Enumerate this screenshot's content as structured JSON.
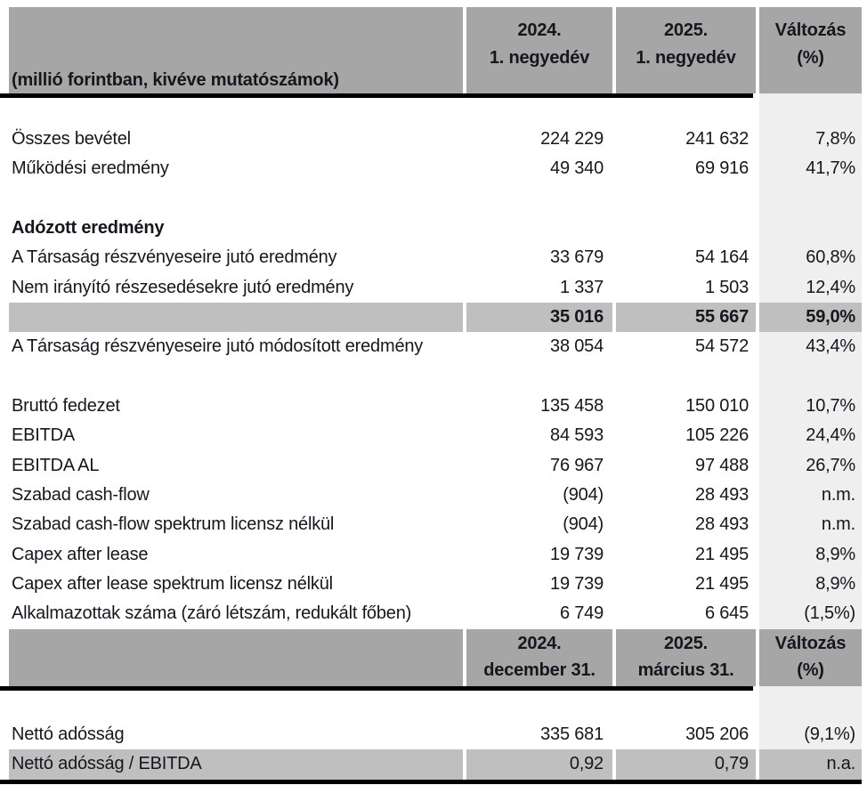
{
  "table": {
    "unit_note": "(millió forintban, kivéve mutatószámok)",
    "colors": {
      "header_bg": "#a6a6a6",
      "highlight_row_bg": "#bfbfbf",
      "change_column_bg": "#efefef",
      "rule": "#000000"
    },
    "header_quarter": {
      "col2_line1": "2024.",
      "col2_line2": "1. negyedév",
      "col3_line1": "2025.",
      "col3_line2": "1. negyedév",
      "col4_line1": "Változás",
      "col4_line2": "(%)"
    },
    "header_date": {
      "col2_line1": "2024.",
      "col2_line2": "december 31.",
      "col3_line1": "2025.",
      "col3_line2": "március 31.",
      "col4_line1": "Változás",
      "col4_line2": "(%)"
    },
    "rows": [
      {
        "label": "Összes bevétel",
        "v2024": "224 229",
        "v2025": "241 632",
        "change": "7,8%"
      },
      {
        "label": "Működési eredmény",
        "v2024": "49 340",
        "v2025": "69 916",
        "change": "41,7%"
      },
      {
        "label": "Adózott eredmény",
        "v2024": "",
        "v2025": "",
        "change": ""
      },
      {
        "label": "A Társaság részvényeseire jutó eredmény",
        "v2024": "33 679",
        "v2025": "54 164",
        "change": "60,8%"
      },
      {
        "label": "Nem irányító részesedésekre jutó eredmény",
        "v2024": "1 337",
        "v2025": "1 503",
        "change": "12,4%"
      },
      {
        "label": "",
        "v2024": "35 016",
        "v2025": "55 667",
        "change": "59,0%"
      },
      {
        "label": "A Társaság részvényeseire jutó módosított eredmény",
        "v2024": "38 054",
        "v2025": "54 572",
        "change": "43,4%"
      },
      {
        "label": "Bruttó fedezet",
        "v2024": "135 458",
        "v2025": "150 010",
        "change": "10,7%"
      },
      {
        "label": "EBITDA",
        "v2024": "84 593",
        "v2025": "105 226",
        "change": "24,4%"
      },
      {
        "label": "EBITDA AL",
        "v2024": "76 967",
        "v2025": "97 488",
        "change": "26,7%"
      },
      {
        "label": "Szabad cash-flow",
        "v2024": "(904)",
        "v2025": "28 493",
        "change": "n.m."
      },
      {
        "label": "Szabad cash-flow spektrum licensz nélkül",
        "v2024": "(904)",
        "v2025": "28 493",
        "change": "n.m."
      },
      {
        "label": "Capex after lease",
        "v2024": "19 739",
        "v2025": "21 495",
        "change": "8,9%"
      },
      {
        "label": "Capex after lease spektrum licensz nélkül",
        "v2024": "19 739",
        "v2025": "21 495",
        "change": "8,9%"
      },
      {
        "label": "Alkalmazottak száma (záró létszám, redukált főben)",
        "v2024": "6 749",
        "v2025": "6 645",
        "change": "(1,5%)"
      },
      {
        "label": "Nettó adósság",
        "v2024": "335 681",
        "v2025": "305 206",
        "change": "(9,1%)"
      },
      {
        "label": "Nettó adósság / EBITDA",
        "v2024": "0,92",
        "v2025": "0,79",
        "change": "n.a."
      }
    ]
  }
}
